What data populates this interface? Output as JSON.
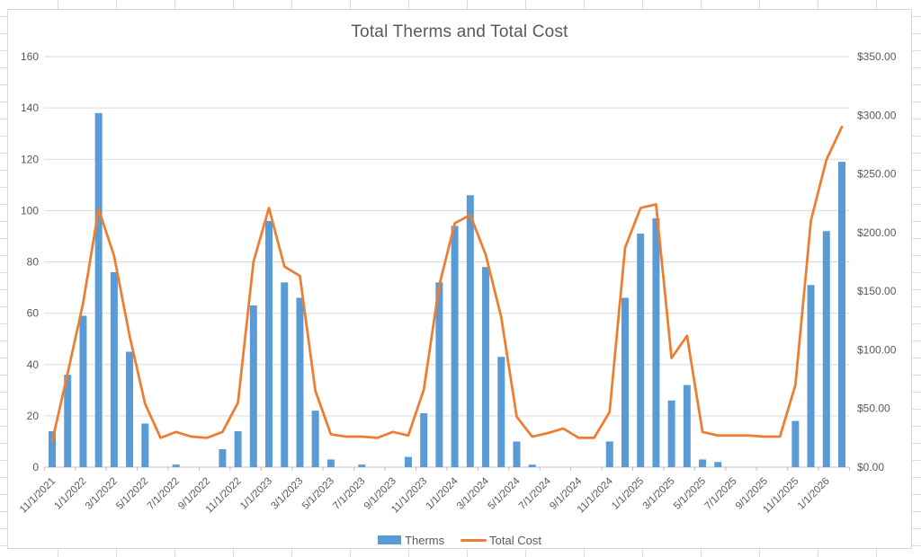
{
  "title": "Total Therms and Total Cost",
  "legend": {
    "therms": "Therms",
    "total_cost": "Total Cost"
  },
  "colors": {
    "bars": "#5B9BD5",
    "line": "#ED7D31",
    "text": "#595959",
    "gridline": "#D9D9D9",
    "axis_line": "#BFBFBF",
    "sheet_gridline": "#DCDCDC"
  },
  "left_axis": {
    "labels": [
      "160",
      "140",
      "120",
      "100",
      "80",
      "60",
      "40",
      "20",
      "0"
    ],
    "values": [
      160,
      140,
      120,
      100,
      80,
      60,
      40,
      20,
      0
    ]
  },
  "right_axis": {
    "labels": [
      "$350.00",
      "$300.00",
      "$250.00",
      "$200.00",
      "$150.00",
      "$100.00",
      "$50.00",
      "$0.00"
    ],
    "values": [
      350,
      300,
      250,
      200,
      150,
      100,
      50,
      0
    ]
  },
  "x_tick_labels": [
    "11/1/2021",
    "1/1/2022",
    "3/1/2022",
    "5/1/2022",
    "7/1/2022",
    "9/1/2022",
    "11/1/2022",
    "1/1/2023",
    "3/1/2023",
    "5/1/2023",
    "7/1/2023",
    "9/1/2023",
    "11/1/2023",
    "1/1/2024",
    "3/1/2024",
    "5/1/2024",
    "7/1/2024",
    "9/1/2024",
    "11/1/2024",
    "1/1/2025",
    "3/1/2025",
    "5/1/2025",
    "7/1/2025",
    "9/1/2025",
    "11/1/2025",
    "1/1/2026"
  ],
  "chart_data": {
    "type": "bar",
    "title": "Total Therms and Total Cost",
    "x": [
      "11/1/2021",
      "12/1/2021",
      "1/1/2022",
      "2/1/2022",
      "3/1/2022",
      "4/1/2022",
      "5/1/2022",
      "6/1/2022",
      "7/1/2022",
      "8/1/2022",
      "9/1/2022",
      "10/1/2022",
      "11/1/2022",
      "12/1/2022",
      "1/1/2023",
      "2/1/2023",
      "3/1/2023",
      "4/1/2023",
      "5/1/2023",
      "6/1/2023",
      "7/1/2023",
      "8/1/2023",
      "9/1/2023",
      "10/1/2023",
      "11/1/2023",
      "12/1/2023",
      "1/1/2024",
      "2/1/2024",
      "3/1/2024",
      "4/1/2024",
      "5/1/2024",
      "6/1/2024",
      "7/1/2024",
      "8/1/2024",
      "9/1/2024",
      "10/1/2024",
      "11/1/2024",
      "12/1/2024",
      "1/1/2025",
      "2/1/2025",
      "3/1/2025",
      "4/1/2025",
      "5/1/2025",
      "6/1/2025",
      "7/1/2025",
      "8/1/2025",
      "9/1/2025",
      "10/1/2025",
      "11/1/2025",
      "12/1/2025",
      "1/1/2026",
      "2/1/2026"
    ],
    "series": [
      {
        "name": "Therms",
        "type": "bar",
        "axis": "left",
        "values": [
          14,
          36,
          59,
          138,
          76,
          45,
          17,
          0,
          1,
          0,
          0,
          7,
          14,
          63,
          96,
          72,
          66,
          22,
          3,
          0,
          1,
          0,
          0,
          4,
          21,
          72,
          94,
          106,
          78,
          43,
          10,
          1,
          0,
          0,
          0,
          0,
          10,
          66,
          91,
          97,
          26,
          32,
          3,
          2,
          0,
          0,
          0,
          0,
          18,
          71,
          92,
          119
        ]
      },
      {
        "name": "Total Cost",
        "type": "line",
        "axis": "right",
        "values": [
          22,
          80,
          140,
          220,
          180,
          112,
          54,
          25,
          30,
          26,
          25,
          30,
          55,
          175,
          221,
          171,
          163,
          65,
          28,
          26,
          26,
          25,
          30,
          27,
          66,
          155,
          208,
          215,
          181,
          128,
          43,
          26,
          29,
          33,
          25,
          25,
          47,
          187,
          221,
          224,
          93,
          112,
          30,
          27,
          27,
          27,
          26,
          26,
          70,
          210,
          262,
          290
        ]
      }
    ],
    "left_ylim": [
      0,
      160
    ],
    "right_ylim": [
      0,
      350
    ],
    "x_label_step": 2,
    "grid": true,
    "legend_position": "bottom"
  }
}
